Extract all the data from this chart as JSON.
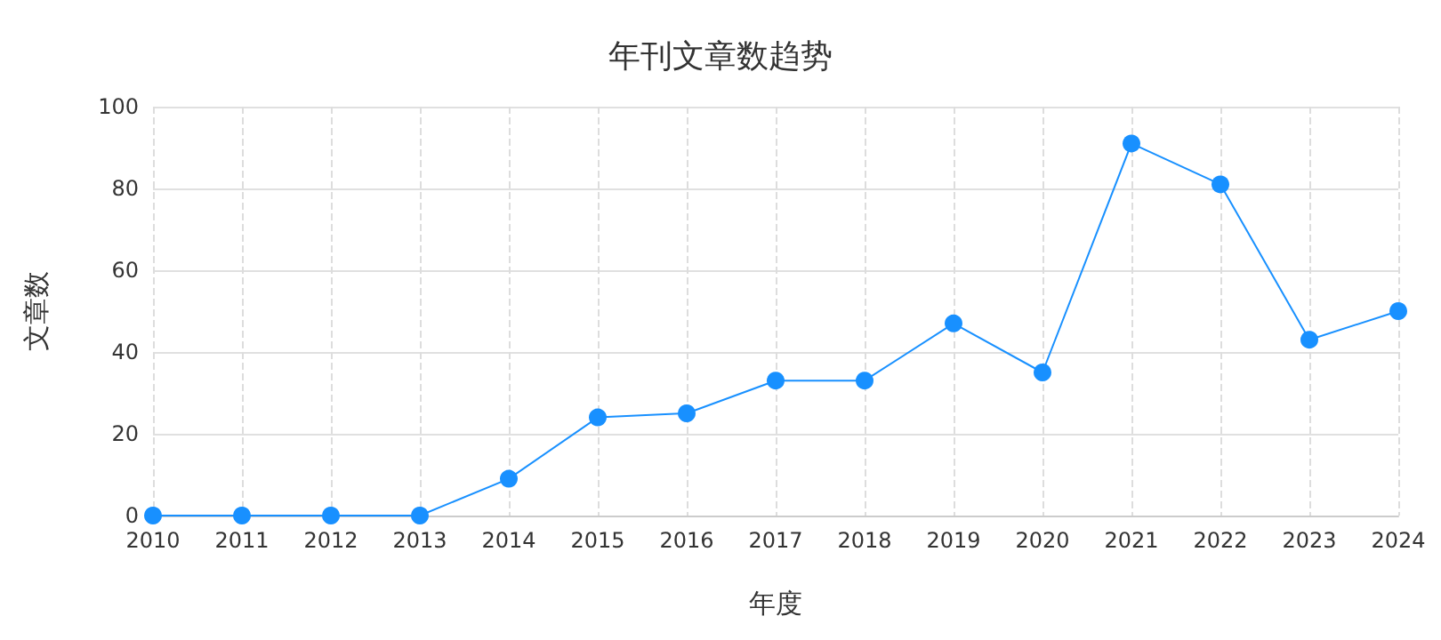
{
  "chart_data": {
    "type": "line",
    "title": "年刊文章数趋势",
    "xlabel": "年度",
    "ylabel": "文章数",
    "categories": [
      "2010",
      "2011",
      "2012",
      "2013",
      "2014",
      "2015",
      "2016",
      "2017",
      "2018",
      "2019",
      "2020",
      "2021",
      "2022",
      "2023",
      "2024"
    ],
    "series": [
      {
        "color": "#1890ff",
        "values": [
          0,
          0,
          0,
          0,
          9,
          24,
          25,
          33,
          33,
          47,
          35,
          91,
          81,
          43,
          50
        ]
      }
    ],
    "ylim": [
      0,
      100
    ],
    "yticks": [
      0,
      20,
      40,
      60,
      80,
      100
    ],
    "grid": true,
    "marker": "circle",
    "line_style": "solid"
  }
}
